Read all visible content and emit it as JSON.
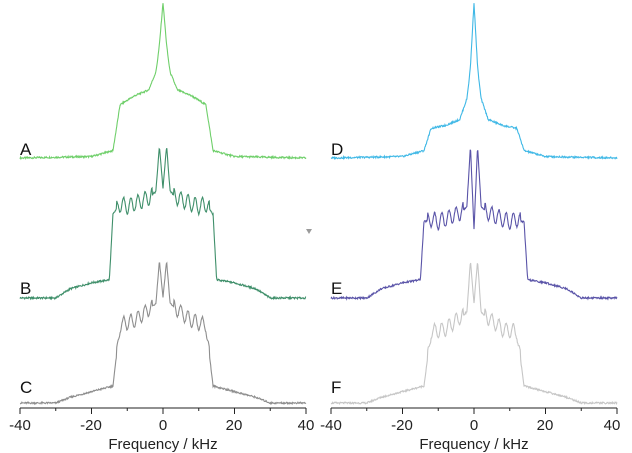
{
  "chart_data": [
    {
      "type": "line",
      "panel": "left",
      "xlabel": "Frequency / kHz",
      "xlim": [
        -40,
        40
      ],
      "xticks": [
        "-40",
        "-20",
        "0",
        "20",
        "40"
      ],
      "grid": false,
      "series": [
        {
          "name": "A",
          "color": "#6fcf6a",
          "shape": "powder",
          "x": [
            -40,
            -20,
            -14,
            -12,
            -8,
            -4,
            -2,
            -1,
            0,
            1,
            2,
            4,
            8,
            12,
            14,
            20,
            40
          ],
          "y": [
            0.0,
            0.01,
            0.05,
            0.36,
            0.42,
            0.46,
            0.58,
            0.75,
            1.0,
            0.75,
            0.58,
            0.46,
            0.42,
            0.36,
            0.05,
            0.01,
            0.0
          ]
        },
        {
          "name": "B",
          "color": "#3f8f6a",
          "shape": "quadrupolar",
          "x": [
            -40,
            -30,
            -26,
            -20,
            -15,
            -14,
            -12,
            -10,
            -8,
            -6,
            -4,
            -2,
            -1,
            0,
            1,
            2,
            4,
            6,
            8,
            10,
            12,
            14,
            15,
            20,
            26,
            30,
            40
          ],
          "y": [
            0.0,
            0.0,
            0.06,
            0.1,
            0.12,
            0.55,
            0.62,
            0.6,
            0.62,
            0.64,
            0.66,
            0.7,
            1.0,
            0.72,
            1.0,
            0.7,
            0.66,
            0.64,
            0.62,
            0.6,
            0.62,
            0.55,
            0.12,
            0.1,
            0.06,
            0.0,
            0.0
          ]
        },
        {
          "name": "C",
          "color": "#8e8e8e",
          "shape": "quadrupolar",
          "x": [
            -40,
            -30,
            -26,
            -20,
            -14,
            -12,
            -8,
            -6,
            -4,
            -2,
            -1,
            0,
            1,
            2,
            4,
            6,
            8,
            12,
            14,
            20,
            26,
            30,
            40
          ],
          "y": [
            0.0,
            0.0,
            0.04,
            0.08,
            0.12,
            0.55,
            0.58,
            0.62,
            0.66,
            0.7,
            1.0,
            0.74,
            1.0,
            0.7,
            0.66,
            0.62,
            0.58,
            0.55,
            0.12,
            0.08,
            0.04,
            0.0,
            0.0
          ]
        }
      ]
    },
    {
      "type": "line",
      "panel": "right",
      "xlabel": "Frequency / kHz",
      "xlim": [
        -40,
        40
      ],
      "xticks": [
        "-40",
        "-20",
        "0",
        "20",
        "40"
      ],
      "grid": false,
      "series": [
        {
          "name": "D",
          "color": "#3fb8e6",
          "shape": "powder",
          "x": [
            -40,
            -20,
            -14,
            -12,
            -8,
            -4,
            -2,
            -1,
            0,
            1,
            2,
            4,
            8,
            12,
            14,
            20,
            40
          ],
          "y": [
            0.0,
            0.01,
            0.05,
            0.2,
            0.22,
            0.26,
            0.4,
            0.6,
            1.0,
            0.6,
            0.4,
            0.26,
            0.22,
            0.2,
            0.05,
            0.01,
            0.0
          ]
        },
        {
          "name": "E",
          "color": "#5a54a8",
          "shape": "quadrupolar",
          "x": [
            -40,
            -30,
            -26,
            -20,
            -15,
            -14,
            -12,
            -10,
            -8,
            -6,
            -4,
            -2,
            -1,
            0,
            1,
            2,
            4,
            6,
            8,
            10,
            12,
            14,
            15,
            20,
            26,
            30,
            40
          ],
          "y": [
            0.0,
            0.0,
            0.06,
            0.1,
            0.12,
            0.5,
            0.52,
            0.5,
            0.52,
            0.54,
            0.56,
            0.6,
            1.0,
            0.45,
            1.0,
            0.6,
            0.56,
            0.54,
            0.52,
            0.5,
            0.52,
            0.5,
            0.12,
            0.1,
            0.06,
            0.0,
            0.0
          ]
        },
        {
          "name": "F",
          "color": "#c6c6c6",
          "shape": "quadrupolar",
          "x": [
            -40,
            -30,
            -26,
            -20,
            -14,
            -12,
            -8,
            -6,
            -4,
            -2,
            -1,
            0,
            1,
            2,
            4,
            6,
            8,
            12,
            14,
            20,
            26,
            30,
            40
          ],
          "y": [
            0.0,
            0.0,
            0.04,
            0.08,
            0.12,
            0.5,
            0.52,
            0.56,
            0.6,
            0.64,
            1.0,
            0.7,
            1.0,
            0.64,
            0.6,
            0.56,
            0.52,
            0.5,
            0.12,
            0.08,
            0.04,
            0.0,
            0.0
          ]
        }
      ]
    }
  ]
}
